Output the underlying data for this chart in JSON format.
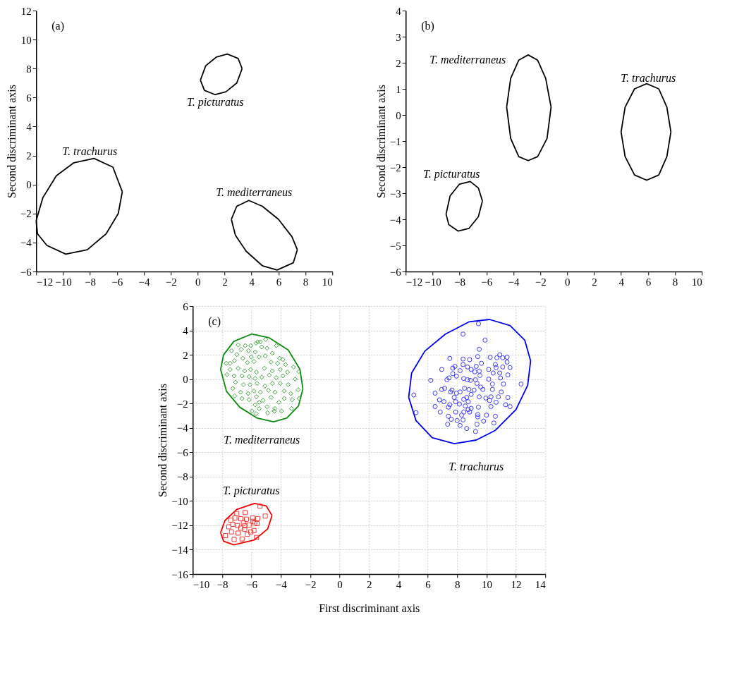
{
  "chart_data": [
    {
      "type": "line",
      "ylabel": "Second discriminant axis",
      "xlim": [
        -12,
        10
      ],
      "ylim": [
        -6,
        12
      ],
      "xticks": [
        -12,
        -10,
        -8,
        -6,
        -4,
        -2,
        0,
        2,
        4,
        6,
        8,
        10
      ],
      "yticks": [
        -6,
        -4,
        -2,
        0,
        2,
        4,
        6,
        8,
        10,
        12
      ],
      "grid": false,
      "series": [
        {
          "color": "#000000",
          "x": [
            -12,
            -11.5,
            -10.5,
            -9.2,
            -7.7,
            -6.3,
            -5.6,
            null,
            -12,
            -11.9,
            -11.2,
            -9.8,
            -8.2,
            -6.8,
            -5.9,
            -5.6
          ],
          "values": [
            -2.5,
            -0.9,
            0.6,
            1.5,
            1.8,
            1.2,
            -0.5,
            null,
            -2.5,
            -3.4,
            -4.2,
            -4.8,
            -4.5,
            -3.4,
            -2.0,
            -0.5
          ]
        },
        {
          "color": "#000000",
          "x": [
            0.2,
            0.6,
            1.4,
            2.2,
            3.0,
            3.3,
            null,
            0.2,
            0.5,
            1.3,
            2.1,
            2.9,
            3.3
          ],
          "values": [
            7.2,
            8.2,
            8.8,
            9.0,
            8.7,
            8.0,
            null,
            7.2,
            6.5,
            6.2,
            6.4,
            7.0,
            8.0
          ]
        },
        {
          "color": "#000000",
          "x": [
            2.5,
            2.9,
            3.8,
            4.8,
            6.0,
            7.0,
            7.4,
            null,
            2.5,
            2.8,
            3.6,
            4.8,
            5.9,
            7.1,
            7.4
          ],
          "values": [
            -2.4,
            -1.5,
            -1.1,
            -1.5,
            -2.4,
            -3.6,
            -4.5,
            null,
            -2.4,
            -3.5,
            -4.6,
            -5.6,
            -5.9,
            -5.4,
            -4.5
          ]
        }
      ],
      "annotations": [
        "(a)",
        "T. trachurus",
        "T. picturatus",
        "T. mediterraneus"
      ]
    },
    {
      "type": "line",
      "ylabel": "Second discriminant axis",
      "xlim": [
        -12,
        10
      ],
      "ylim": [
        -6,
        4
      ],
      "xticks": [
        -12,
        -10,
        -8,
        -6,
        -4,
        -2,
        0,
        2,
        4,
        6,
        8,
        10
      ],
      "yticks": [
        -6,
        -5,
        -4,
        -3,
        -2,
        -1,
        0,
        1,
        2,
        3,
        4
      ],
      "grid": false,
      "series": [
        {
          "color": "#000000",
          "x": [
            -4.5,
            -4.2,
            -3.6,
            -2.9,
            -2.2,
            -1.6,
            -1.2,
            null,
            -4.5,
            -4.2,
            -3.6,
            -2.9,
            -2.2,
            -1.5,
            -1.2
          ],
          "values": [
            0.3,
            1.4,
            2.1,
            2.3,
            2.1,
            1.4,
            0.3,
            null,
            0.3,
            -0.9,
            -1.6,
            -1.75,
            -1.6,
            -0.9,
            0.3
          ]
        },
        {
          "color": "#000000",
          "x": [
            4.0,
            4.3,
            5.0,
            5.9,
            6.8,
            7.4,
            7.7,
            null,
            4.0,
            4.3,
            5.0,
            5.9,
            6.8,
            7.4,
            7.7
          ],
          "values": [
            -0.65,
            0.3,
            1.0,
            1.2,
            1.0,
            0.3,
            -0.65,
            null,
            -0.65,
            -1.6,
            -2.3,
            -2.5,
            -2.3,
            -1.6,
            -0.65
          ]
        },
        {
          "color": "#000000",
          "x": [
            -9.0,
            -8.7,
            -8.0,
            -7.2,
            -6.6,
            -6.3,
            null,
            -9.0,
            -8.8,
            -8.1,
            -7.3,
            -6.6,
            -6.3
          ],
          "values": [
            -3.8,
            -3.1,
            -2.65,
            -2.55,
            -2.8,
            -3.3,
            null,
            -3.8,
            -4.2,
            -4.45,
            -4.35,
            -3.9,
            -3.3
          ]
        }
      ],
      "annotations": [
        "(b)",
        "T. mediterraneus",
        "T. trachurus",
        "T. picturatus"
      ]
    },
    {
      "type": "scatter",
      "xlabel": "First discriminant axis",
      "ylabel": "Second discriminant axis",
      "xlim": [
        -10,
        14
      ],
      "ylim": [
        -16,
        6
      ],
      "xticks": [
        -10,
        -8,
        -6,
        -4,
        -2,
        0,
        2,
        4,
        6,
        8,
        10,
        12,
        14
      ],
      "yticks": [
        -16,
        -14,
        -12,
        -10,
        -8,
        -6,
        -4,
        -2,
        0,
        2,
        4,
        6
      ],
      "grid": true,
      "series": [
        {
          "type": "line",
          "color": "#108a10",
          "x": [
            -8.1,
            -7.9,
            -7.2,
            -6.0,
            -4.8,
            -3.5,
            -2.7,
            -2.5,
            null,
            -8.1,
            -7.7,
            -6.8,
            -5.6,
            -4.5,
            -3.6,
            -2.8,
            -2.5
          ],
          "values": [
            0.8,
            2.0,
            3.1,
            3.7,
            3.4,
            2.4,
            0.8,
            -0.8,
            null,
            0.8,
            -1.0,
            -2.3,
            -3.2,
            -3.5,
            -3.2,
            -2.2,
            -0.8
          ]
        },
        {
          "type": "scatter",
          "marker": "diamond",
          "color": "#40a040",
          "x": [
            -5.03,
            -5.39,
            -5.57,
            -5.69,
            -6.05,
            -6.43,
            -6.91,
            -4.31,
            -6.7,
            -7.36,
            -6.2,
            -5.75,
            -5.3,
            -4.94,
            -4.58,
            -4.08,
            -3.86,
            -5.06,
            -5.48,
            -6.01,
            -6.59,
            -7.0,
            -7.16,
            -7.45,
            -7.72,
            -6.28,
            -5.83,
            -4.67,
            -4.22,
            -3.68,
            -3.14,
            -7.45,
            -6.91,
            -6.46,
            -6.05,
            -5.66,
            -5.12,
            -4.58,
            -4.04,
            -3.55,
            -2.78,
            -7.67,
            -7.18,
            -6.64,
            -6.16,
            -5.75,
            -5.3,
            -4.79,
            -4.31,
            -3.86,
            -3.02,
            -7.09,
            -6.55,
            -6.1,
            -5.62,
            -5.08,
            -4.58,
            -4.04,
            -3.5,
            -2.82,
            -7.27,
            -6.73,
            -6.23,
            -5.83,
            -5.39,
            -4.85,
            -4.4,
            -3.77,
            -3.32,
            -7.13,
            -6.64,
            -6.16,
            -5.66,
            -5.21,
            -4.67,
            -4.13,
            -3.77,
            -3.23,
            -2.75,
            -5.75,
            -5.48,
            -4.94,
            -4.4,
            -3.95,
            -3.27,
            -5.96,
            -5.69,
            -4.9,
            -4.44,
            -5.48
          ],
          "values": [
            3.26,
            3.06,
            3.06,
            2.95,
            2.75,
            2.75,
            2.81,
            2.75,
            2.44,
            2.33,
            2.33,
            2.23,
            2.64,
            2.54,
            2.13,
            1.71,
            1.61,
            1.9,
            1.82,
            1.82,
            1.71,
            2.02,
            1.51,
            1.3,
            1.3,
            1.36,
            1.45,
            1.4,
            1.3,
            1.2,
            0.99,
            0.79,
            0.89,
            0.68,
            0.79,
            0.58,
            0.89,
            0.68,
            0.79,
            0.58,
            0.62,
            0.37,
            0.27,
            0.27,
            0.21,
            0.06,
            0.17,
            0.33,
            0.12,
            0.27,
            0.0,
            -0.25,
            -0.45,
            -0.45,
            -0.35,
            -0.56,
            -0.35,
            -0.35,
            -0.45,
            -0.87,
            -0.76,
            -1.07,
            -1.18,
            -0.97,
            -1.07,
            -0.91,
            -1.07,
            -0.97,
            -1.18,
            -1.38,
            -1.59,
            -1.69,
            -1.45,
            -1.74,
            -1.49,
            -1.9,
            -1.59,
            -1.69,
            -1.59,
            -2.11,
            -2.42,
            -2.27,
            -2.42,
            -2.62,
            -2.42,
            -2.62,
            -2.83,
            -2.77,
            -2.62,
            -1.9
          ]
        },
        {
          "type": "line",
          "color": "#0000f0",
          "x": [
            4.7,
            4.9,
            5.8,
            7.2,
            8.8,
            10.2,
            11.6,
            12.6,
            13.0,
            null,
            4.7,
            5.2,
            6.3,
            7.8,
            9.3,
            10.6,
            12.0,
            12.8,
            13.0
          ],
          "values": [
            -1.5,
            0.5,
            2.3,
            3.7,
            4.7,
            4.9,
            4.4,
            3.2,
            1.5,
            null,
            -1.5,
            -3.4,
            -4.8,
            -5.3,
            -5.0,
            -4.2,
            -2.5,
            -0.5,
            1.5
          ]
        },
        {
          "type": "scatter",
          "marker": "circle",
          "color": "#3a3af5",
          "x": [
            9.45,
            8.4,
            9.9,
            9.5,
            9.4,
            10.25,
            10.9,
            10.7,
            11.1,
            11.4,
            11.4,
            11.6,
            11.1,
            10.6,
            10.65,
            11.45,
            10.9,
            10.95,
            10.45,
            10.15,
            10.15,
            9.65,
            9.3,
            8.95,
            8.85,
            8.4,
            8.4,
            8.7,
            8.2,
            7.85,
            7.7,
            7.5,
            6.95,
            6.2,
            7.3,
            7.45,
            7.95,
            7.7,
            8.45,
            8.7,
            8.9,
            9.25,
            9.55,
            9.5,
            9.2,
            9.35,
            9.6,
            9.75,
            10.4,
            11.15,
            12.35,
            10.4,
            11.0,
            10.8,
            11.45,
            11.3,
            11.6,
            10.65,
            10.3,
            10.2,
            9.95,
            10.3,
            9.5,
            9.45,
            8.95,
            9.15,
            8.8,
            8.5,
            8.2,
            7.95,
            7.65,
            7.55,
            7.15,
            6.95,
            6.5,
            5.05,
            5.2,
            6.8,
            7.1,
            6.5,
            6.85,
            7.4,
            7.5,
            7.8,
            7.9,
            8.15,
            8.45,
            8.65,
            8.75,
            8.55,
            8.75,
            8.95,
            8.85,
            8.45,
            7.9,
            7.4,
            8.3,
            9.4,
            9.4,
            10.0,
            10.6,
            9.8,
            7.6,
            8.0,
            8.4,
            7.35,
            8.2,
            9.35,
            10.5,
            8.65,
            9.25
          ],
          "values": [
            4.55,
            3.7,
            3.2,
            2.45,
            1.85,
            1.8,
            2.0,
            1.75,
            1.75,
            1.8,
            1.4,
            0.95,
            1.0,
            1.2,
            0.95,
            0.35,
            0.5,
            0.1,
            0.5,
            0.8,
            0.0,
            1.3,
            1.05,
            0.8,
            1.6,
            1.65,
            1.2,
            1.0,
            0.7,
            1.05,
            0.9,
            1.7,
            0.8,
            -0.1,
            -0.05,
            0.1,
            0.25,
            0.45,
            0.05,
            -0.05,
            -0.1,
            -0.05,
            0.3,
            0.65,
            0.6,
            -0.35,
            -0.65,
            -0.85,
            -0.4,
            -0.4,
            -0.4,
            -0.85,
            -1.05,
            -1.45,
            -1.5,
            -2.1,
            -2.25,
            -1.9,
            -2.25,
            -1.75,
            -1.55,
            -1.45,
            -1.45,
            -2.3,
            -1.25,
            -0.9,
            -0.85,
            -0.75,
            -1.05,
            -1.15,
            -0.9,
            -1.05,
            -0.75,
            -0.85,
            -1.15,
            -1.3,
            -2.75,
            -1.7,
            -1.85,
            -2.25,
            -2.7,
            -2.3,
            -2.1,
            -1.5,
            -1.85,
            -2.05,
            -1.65,
            -1.5,
            -1.85,
            -2.2,
            -2.5,
            -2.4,
            -2.7,
            -2.7,
            -2.7,
            -3.05,
            -2.95,
            -2.9,
            -3.1,
            -2.95,
            -3.05,
            -3.45,
            -3.3,
            -3.4,
            -3.35,
            -3.7,
            -3.8,
            -3.7,
            -3.6,
            -4.05,
            -4.3
          ]
        },
        {
          "type": "line",
          "color": "#f00000",
          "x": [
            -8.1,
            -7.8,
            -7.0,
            -5.8,
            -5.0,
            -4.6,
            null,
            -8.1,
            -7.9,
            -7.2,
            -5.8,
            -4.9,
            -4.6
          ],
          "values": [
            -12.6,
            -11.6,
            -10.7,
            -10.2,
            -10.4,
            -11.2,
            null,
            -12.6,
            -13.3,
            -13.6,
            -13.2,
            -12.3,
            -11.2
          ]
        },
        {
          "type": "scatter",
          "marker": "square",
          "color": "#f53a3a",
          "x": [
            -5.42,
            -5.06,
            -7.0,
            -6.43,
            -7.41,
            -7.13,
            -6.73,
            -6.34,
            -5.92,
            -5.57,
            -7.54,
            -7.27,
            -6.95,
            -6.55,
            -6.16,
            -5.78,
            -5.62,
            -7.77,
            -7.36,
            -6.91,
            -6.46,
            -6.05,
            -5.83,
            -7.18,
            -6.64,
            -6.28,
            -5.66,
            -6.46,
            -6.73,
            -5.9
          ],
          "values": [
            -10.43,
            -11.24,
            -11.03,
            -10.95,
            -11.57,
            -11.4,
            -11.46,
            -11.5,
            -11.4,
            -11.44,
            -12.12,
            -11.92,
            -12.02,
            -11.81,
            -11.98,
            -11.81,
            -11.86,
            -12.85,
            -12.54,
            -12.64,
            -12.33,
            -12.54,
            -12.43,
            -13.16,
            -13.12,
            -12.74,
            -13.0,
            -12.02,
            -12.23,
            -11.67
          ]
        }
      ],
      "annotations": [
        "(c)",
        "T. mediterraneus",
        "T. trachurus",
        "T. picturatus"
      ]
    }
  ]
}
